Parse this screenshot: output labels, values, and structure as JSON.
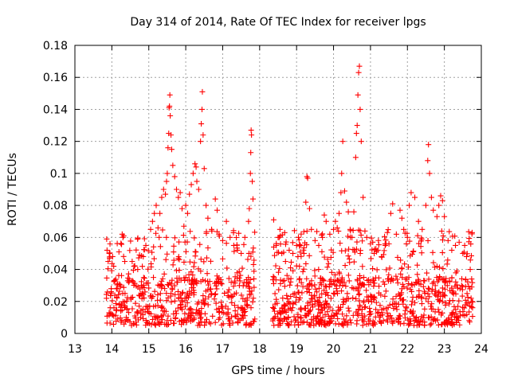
{
  "chart_data": {
    "type": "scatter",
    "title": "Day 314 of 2014, Rate Of TEC Index for receiver lpgs",
    "xlabel": "GPS time / hours",
    "ylabel": "ROTI / TECUs",
    "xlim": [
      13,
      24
    ],
    "ylim": [
      0,
      0.18
    ],
    "x_ticks": [
      "13",
      "14",
      "15",
      "16",
      "17",
      "18",
      "19",
      "20",
      "21",
      "22",
      "23",
      "24"
    ],
    "y_ticks": [
      "0",
      "0.02",
      "0.04",
      "0.06",
      "0.08",
      "0.1",
      "0.12",
      "0.14",
      "0.16",
      "0.18"
    ],
    "grid": true,
    "marker": "+",
    "marker_color": "#ff0000",
    "series": [
      {
        "name": "ROTI",
        "points": [
          [
            13.86,
            0.059
          ],
          [
            13.87,
            0.052
          ],
          [
            13.9,
            0.045
          ],
          [
            13.93,
            0.05
          ],
          [
            13.95,
            0.056
          ],
          [
            14.02,
            0.048
          ],
          [
            14.05,
            0.042
          ],
          [
            14.28,
            0.062
          ],
          [
            14.3,
            0.06
          ],
          [
            14.32,
            0.061
          ],
          [
            14.35,
            0.045
          ],
          [
            14.55,
            0.045
          ],
          [
            14.6,
            0.042
          ],
          [
            14.7,
            0.04
          ],
          [
            14.85,
            0.048
          ],
          [
            14.92,
            0.055
          ],
          [
            15.05,
            0.065
          ],
          [
            15.1,
            0.07
          ],
          [
            15.15,
            0.075
          ],
          [
            15.2,
            0.08
          ],
          [
            15.25,
            0.066
          ],
          [
            15.28,
            0.06
          ],
          [
            15.3,
            0.075
          ],
          [
            15.35,
            0.085
          ],
          [
            15.4,
            0.09
          ],
          [
            15.45,
            0.087
          ],
          [
            15.48,
            0.095
          ],
          [
            15.5,
            0.1
          ],
          [
            15.52,
            0.116
          ],
          [
            15.54,
            0.125
          ],
          [
            15.55,
            0.141
          ],
          [
            15.56,
            0.142
          ],
          [
            15.57,
            0.149
          ],
          [
            15.58,
            0.136
          ],
          [
            15.6,
            0.124
          ],
          [
            15.62,
            0.115
          ],
          [
            15.65,
            0.105
          ],
          [
            15.7,
            0.098
          ],
          [
            15.75,
            0.09
          ],
          [
            15.8,
            0.085
          ],
          [
            15.85,
            0.088
          ],
          [
            15.9,
            0.078
          ],
          [
            15.95,
            0.067
          ],
          [
            16.0,
            0.08
          ],
          [
            16.05,
            0.075
          ],
          [
            16.1,
            0.087
          ],
          [
            16.15,
            0.093
          ],
          [
            16.2,
            0.1
          ],
          [
            16.25,
            0.106
          ],
          [
            16.28,
            0.104
          ],
          [
            16.3,
            0.095
          ],
          [
            16.35,
            0.09
          ],
          [
            16.4,
            0.12
          ],
          [
            16.42,
            0.131
          ],
          [
            16.44,
            0.14
          ],
          [
            16.45,
            0.151
          ],
          [
            16.47,
            0.124
          ],
          [
            16.5,
            0.103
          ],
          [
            16.55,
            0.08
          ],
          [
            16.6,
            0.072
          ],
          [
            16.7,
            0.065
          ],
          [
            16.8,
            0.084
          ],
          [
            16.85,
            0.077
          ],
          [
            16.9,
            0.062
          ],
          [
            17.0,
            0.058
          ],
          [
            17.1,
            0.07
          ],
          [
            17.2,
            0.06
          ],
          [
            17.3,
            0.055
          ],
          [
            17.4,
            0.052
          ],
          [
            17.5,
            0.05
          ],
          [
            17.6,
            0.06
          ],
          [
            17.7,
            0.07
          ],
          [
            17.72,
            0.078
          ],
          [
            17.75,
            0.1
          ],
          [
            17.76,
            0.113
          ],
          [
            17.77,
            0.127
          ],
          [
            17.78,
            0.124
          ],
          [
            17.8,
            0.095
          ],
          [
            17.82,
            0.084
          ],
          [
            18.38,
            0.071
          ],
          [
            18.45,
            0.055
          ],
          [
            18.5,
            0.06
          ],
          [
            18.55,
            0.065
          ],
          [
            18.6,
            0.05
          ],
          [
            18.7,
            0.045
          ],
          [
            18.8,
            0.052
          ],
          [
            18.9,
            0.05
          ],
          [
            19.0,
            0.055
          ],
          [
            19.05,
            0.06
          ],
          [
            19.1,
            0.055
          ],
          [
            19.2,
            0.05
          ],
          [
            19.25,
            0.082
          ],
          [
            19.28,
            0.098
          ],
          [
            19.3,
            0.097
          ],
          [
            19.35,
            0.078
          ],
          [
            19.4,
            0.065
          ],
          [
            19.5,
            0.058
          ],
          [
            19.6,
            0.055
          ],
          [
            19.7,
            0.06
          ],
          [
            19.75,
            0.074
          ],
          [
            19.8,
            0.07
          ],
          [
            19.9,
            0.062
          ],
          [
            20.0,
            0.065
          ],
          [
            20.05,
            0.07
          ],
          [
            20.1,
            0.066
          ],
          [
            20.15,
            0.075
          ],
          [
            20.2,
            0.088
          ],
          [
            20.22,
            0.1
          ],
          [
            20.25,
            0.12
          ],
          [
            20.3,
            0.089
          ],
          [
            20.35,
            0.082
          ],
          [
            20.4,
            0.076
          ],
          [
            20.45,
            0.065
          ],
          [
            20.5,
            0.06
          ],
          [
            20.55,
            0.076
          ],
          [
            20.6,
            0.11
          ],
          [
            20.62,
            0.125
          ],
          [
            20.64,
            0.13
          ],
          [
            20.66,
            0.149
          ],
          [
            20.68,
            0.163
          ],
          [
            20.7,
            0.167
          ],
          [
            20.72,
            0.14
          ],
          [
            20.75,
            0.12
          ],
          [
            20.8,
            0.085
          ],
          [
            20.85,
            0.064
          ],
          [
            20.9,
            0.06
          ],
          [
            21.0,
            0.056
          ],
          [
            21.1,
            0.05
          ],
          [
            21.2,
            0.052
          ],
          [
            21.3,
            0.048
          ],
          [
            21.4,
            0.055
          ],
          [
            21.5,
            0.056
          ],
          [
            21.55,
            0.075
          ],
          [
            21.6,
            0.081
          ],
          [
            21.7,
            0.062
          ],
          [
            21.8,
            0.077
          ],
          [
            21.85,
            0.072
          ],
          [
            21.9,
            0.065
          ],
          [
            22.0,
            0.06
          ],
          [
            22.05,
            0.08
          ],
          [
            22.1,
            0.088
          ],
          [
            22.2,
            0.085
          ],
          [
            22.3,
            0.07
          ],
          [
            22.4,
            0.065
          ],
          [
            22.5,
            0.08
          ],
          [
            22.55,
            0.108
          ],
          [
            22.57,
            0.118
          ],
          [
            22.6,
            0.1
          ],
          [
            22.65,
            0.085
          ],
          [
            22.7,
            0.077
          ],
          [
            22.8,
            0.073
          ],
          [
            22.85,
            0.08
          ],
          [
            22.9,
            0.086
          ],
          [
            22.95,
            0.083
          ],
          [
            23.0,
            0.073
          ],
          [
            23.1,
            0.058
          ],
          [
            23.2,
            0.052
          ],
          [
            23.3,
            0.055
          ],
          [
            23.4,
            0.057
          ],
          [
            23.5,
            0.05
          ],
          [
            23.55,
            0.055
          ],
          [
            23.6,
            0.048
          ],
          [
            23.7,
            0.04
          ]
        ],
        "background": {
          "segments": [
            [
              13.85,
              17.88
            ],
            [
              18.35,
              23.78
            ]
          ],
          "low_band": [
            0.005,
            0.035
          ],
          "count": 1100,
          "mid_count": 320,
          "mid_band": [
            0.03,
            0.065
          ],
          "seed": 314
        }
      }
    ]
  }
}
